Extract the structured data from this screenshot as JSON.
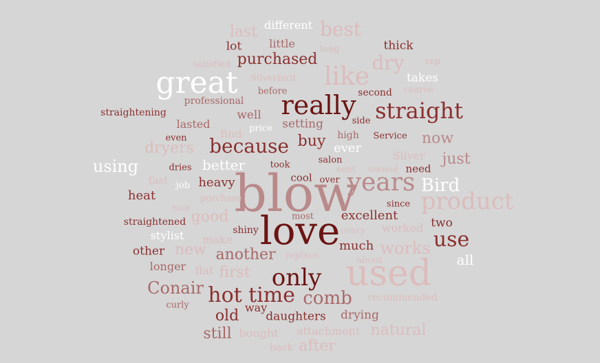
{
  "palette": {
    "background": "#d6d6d6",
    "dark": "#6b1414",
    "maroon": "#8a2f2f",
    "rose": "#a86868",
    "mid": "#b98a8a",
    "pale": "#dcbcbc",
    "faint": "#e2c9c9",
    "white": "#ffffff"
  },
  "words": [
    {
      "text": "blow",
      "weight": 10,
      "color": "mid"
    },
    {
      "text": "love",
      "weight": 9,
      "color": "dark"
    },
    {
      "text": "used",
      "weight": 8,
      "color": "pale"
    },
    {
      "text": "years",
      "weight": 7,
      "color": "mid"
    },
    {
      "text": "great",
      "weight": 7,
      "color": "white"
    },
    {
      "text": "really",
      "weight": 6,
      "color": "dark"
    },
    {
      "text": "straight",
      "weight": 6,
      "color": "maroon"
    },
    {
      "text": "like",
      "weight": 6,
      "color": "pale"
    },
    {
      "text": "product",
      "weight": 6,
      "color": "pale"
    },
    {
      "text": "only",
      "weight": 5,
      "color": "dark"
    },
    {
      "text": "use",
      "weight": 5,
      "color": "maroon"
    },
    {
      "text": "time",
      "weight": 5,
      "color": "maroon"
    },
    {
      "text": "hot",
      "weight": 5,
      "color": "maroon"
    },
    {
      "text": "because",
      "weight": 5,
      "color": "maroon"
    },
    {
      "text": "best",
      "weight": 5,
      "color": "pale"
    },
    {
      "text": "Bird",
      "weight": 5,
      "color": "white"
    },
    {
      "text": "comb",
      "weight": 4,
      "color": "rose"
    },
    {
      "text": "Conair",
      "weight": 4,
      "color": "rose"
    },
    {
      "text": "dry",
      "weight": 4,
      "color": "pale"
    },
    {
      "text": "works",
      "weight": 4,
      "color": "pale"
    },
    {
      "text": "using",
      "weight": 4,
      "color": "white"
    },
    {
      "text": "purchased",
      "weight": 3,
      "color": "maroon"
    },
    {
      "text": "another",
      "weight": 3,
      "color": "rose"
    },
    {
      "text": "old",
      "weight": 3,
      "color": "maroon"
    },
    {
      "text": "still",
      "weight": 3,
      "color": "rose"
    },
    {
      "text": "just",
      "weight": 3,
      "color": "mid"
    },
    {
      "text": "now",
      "weight": 3,
      "color": "mid"
    },
    {
      "text": "new",
      "weight": 3,
      "color": "pale"
    },
    {
      "text": "natural",
      "weight": 3,
      "color": "pale"
    },
    {
      "text": "after",
      "weight": 3,
      "color": "pale"
    },
    {
      "text": "dryers",
      "weight": 3,
      "color": "pale"
    },
    {
      "text": "good",
      "weight": 3,
      "color": "pale"
    },
    {
      "text": "first",
      "weight": 3,
      "color": "pale"
    },
    {
      "text": "last",
      "weight": 3,
      "color": "pale"
    },
    {
      "text": "buy",
      "weight": 3,
      "color": "maroon"
    },
    {
      "text": "heavy",
      "weight": 2,
      "color": "maroon"
    },
    {
      "text": "excellent",
      "weight": 2,
      "color": "maroon"
    },
    {
      "text": "much",
      "weight": 2,
      "color": "maroon"
    },
    {
      "text": "heat",
      "weight": 2,
      "color": "maroon"
    },
    {
      "text": "daughters",
      "weight": 2,
      "color": "maroon"
    },
    {
      "text": "other",
      "weight": 2,
      "color": "maroon"
    },
    {
      "text": "two",
      "weight": 2,
      "color": "maroon"
    },
    {
      "text": "setting",
      "weight": 2,
      "color": "rose"
    },
    {
      "text": "well",
      "weight": 2,
      "color": "rose"
    },
    {
      "text": "lasted",
      "weight": 2,
      "color": "rose"
    },
    {
      "text": "drying",
      "weight": 2,
      "color": "rose"
    },
    {
      "text": "longer",
      "weight": 2,
      "color": "rose"
    },
    {
      "text": "lot",
      "weight": 2,
      "color": "maroon"
    },
    {
      "text": "thick",
      "weight": 2,
      "color": "maroon"
    },
    {
      "text": "way",
      "weight": 2,
      "color": "maroon"
    },
    {
      "text": "cool",
      "weight": 2,
      "color": "maroon"
    },
    {
      "text": "need",
      "weight": 2,
      "color": "maroon"
    },
    {
      "text": "little",
      "weight": 2,
      "color": "rose"
    },
    {
      "text": "worked",
      "weight": 2,
      "color": "pale"
    },
    {
      "text": "make",
      "weight": 2,
      "color": "pale"
    },
    {
      "text": "flat",
      "weight": 2,
      "color": "pale"
    },
    {
      "text": "bought",
      "weight": 2,
      "color": "pale"
    },
    {
      "text": "attachment",
      "weight": 2,
      "color": "pale"
    },
    {
      "text": "find",
      "weight": 2,
      "color": "pale"
    },
    {
      "text": "fast",
      "weight": 2,
      "color": "pale"
    },
    {
      "text": "Silver",
      "weight": 2,
      "color": "pale"
    },
    {
      "text": "back",
      "weight": 2,
      "color": "pale"
    },
    {
      "text": "better",
      "weight": 2,
      "color": "white"
    },
    {
      "text": "ever",
      "weight": 2,
      "color": "white"
    },
    {
      "text": "stylist",
      "weight": 2,
      "color": "white"
    },
    {
      "text": "all",
      "weight": 3,
      "color": "white"
    },
    {
      "text": "different",
      "weight": 2,
      "color": "white"
    },
    {
      "text": "takes",
      "weight": 2,
      "color": "white"
    },
    {
      "text": "straightening",
      "weight": 1,
      "color": "maroon"
    },
    {
      "text": "straightened",
      "weight": 1,
      "color": "maroon"
    },
    {
      "text": "shiny",
      "weight": 1,
      "color": "maroon"
    },
    {
      "text": "dries",
      "weight": 1,
      "color": "maroon"
    },
    {
      "text": "took",
      "weight": 1,
      "color": "maroon"
    },
    {
      "text": "salon",
      "weight": 1,
      "color": "maroon"
    },
    {
      "text": "over",
      "weight": 1,
      "color": "maroon"
    },
    {
      "text": "since",
      "weight": 1,
      "color": "maroon"
    },
    {
      "text": "second",
      "weight": 1,
      "color": "maroon"
    },
    {
      "text": "side",
      "weight": 1,
      "color": "maroon"
    },
    {
      "text": "Service",
      "weight": 1,
      "color": "maroon"
    },
    {
      "text": "even",
      "weight": 1,
      "color": "maroon"
    },
    {
      "text": "professional",
      "weight": 1,
      "color": "rose"
    },
    {
      "text": "before",
      "weight": 1,
      "color": "rose"
    },
    {
      "text": "most",
      "weight": 1,
      "color": "rose"
    },
    {
      "text": "curly",
      "weight": 1,
      "color": "rose"
    },
    {
      "text": "high",
      "weight": 1,
      "color": "rose"
    },
    {
      "text": "coarse",
      "weight": 1,
      "color": "pale"
    },
    {
      "text": "long",
      "weight": 1,
      "color": "pale"
    },
    {
      "text": "satisfied",
      "weight": 1,
      "color": "pale"
    },
    {
      "text": "Silverbird",
      "weight": 1,
      "color": "pale"
    },
    {
      "text": "rep",
      "weight": 1,
      "color": "pale"
    },
    {
      "text": "sent",
      "weight": 1,
      "color": "pale"
    },
    {
      "text": "owned",
      "weight": 1,
      "color": "pale"
    },
    {
      "text": "nice",
      "weight": 1,
      "color": "pale"
    },
    {
      "text": "purchase",
      "weight": 1,
      "color": "pale"
    },
    {
      "text": "replace",
      "weight": 1,
      "color": "pale"
    },
    {
      "text": "every",
      "weight": 1,
      "color": "pale"
    },
    {
      "text": "about",
      "weight": 1,
      "color": "pale"
    },
    {
      "text": "recommended",
      "weight": 1,
      "color": "pale"
    },
    {
      "text": "price",
      "weight": 1,
      "color": "white"
    },
    {
      "text": "job",
      "weight": 1,
      "color": "white"
    }
  ]
}
